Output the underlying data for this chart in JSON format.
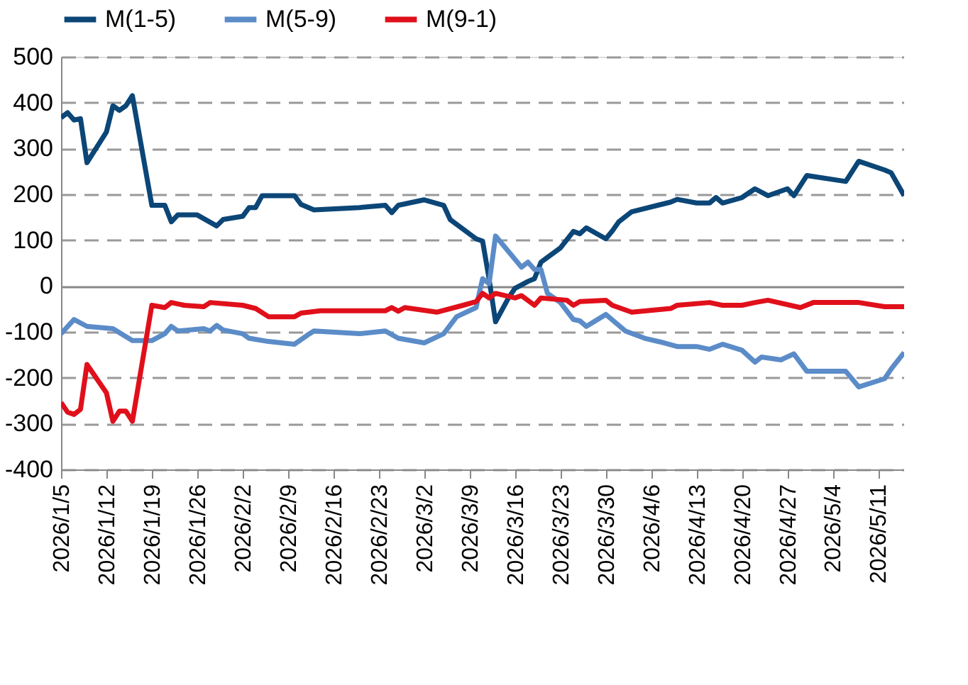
{
  "chart_data": {
    "type": "line",
    "legend": "top",
    "grid": "y",
    "marker": "none",
    "line_style": "solid",
    "xlim": [
      "2026-01-05",
      "2026-05-15"
    ],
    "xticks": [
      {
        "value": "2026-01-05",
        "label": "2026/1/5"
      },
      {
        "value": "2026-01-12",
        "label": "2026/1/12"
      },
      {
        "value": "2026-01-19",
        "label": "2026/1/19"
      },
      {
        "value": "2026-01-26",
        "label": "2026/1/26"
      },
      {
        "value": "2026-02-02",
        "label": "2026/2/2"
      },
      {
        "value": "2026-02-09",
        "label": "2026/2/9"
      },
      {
        "value": "2026-02-16",
        "label": "2026/2/16"
      },
      {
        "value": "2026-02-23",
        "label": "2026/2/23"
      },
      {
        "value": "2026-03-02",
        "label": "2026/3/2"
      },
      {
        "value": "2026-03-09",
        "label": "2026/3/9"
      },
      {
        "value": "2026-03-16",
        "label": "2026/3/16"
      },
      {
        "value": "2026-03-23",
        "label": "2026/3/23"
      },
      {
        "value": "2026-03-30",
        "label": "2026/3/30"
      },
      {
        "value": "2026-04-06",
        "label": "2026/4/6"
      },
      {
        "value": "2026-04-13",
        "label": "2026/4/13"
      },
      {
        "value": "2026-04-20",
        "label": "2026/4/20"
      },
      {
        "value": "2026-04-27",
        "label": "2026/4/27"
      },
      {
        "value": "2026-05-04",
        "label": "2026/5/4"
      },
      {
        "value": "2026-05-11",
        "label": "2026/5/11"
      }
    ],
    "ylim": [
      -400,
      500
    ],
    "yticks": [
      -400,
      -300,
      -200,
      -100,
      0,
      100,
      200,
      300,
      400,
      500
    ],
    "series": [
      {
        "name": "M(1-5)",
        "color": "#0b4677",
        "x": [
          "2026-01-05",
          "2026-01-06",
          "2026-01-07",
          "2026-01-08",
          "2026-01-09",
          "2026-01-12",
          "2026-01-13",
          "2026-01-14",
          "2026-01-15",
          "2026-01-16",
          "2026-01-19",
          "2026-01-21",
          "2026-01-22",
          "2026-01-23",
          "2026-01-26",
          "2026-01-29",
          "2026-01-30",
          "2026-02-02",
          "2026-02-03",
          "2026-02-04",
          "2026-02-05",
          "2026-02-10",
          "2026-02-11",
          "2026-02-13",
          "2026-02-20",
          "2026-02-24",
          "2026-02-25",
          "2026-02-26",
          "2026-03-02",
          "2026-03-05",
          "2026-03-06",
          "2026-03-10",
          "2026-03-11",
          "2026-03-12",
          "2026-03-13",
          "2026-03-15",
          "2026-03-16",
          "2026-03-18",
          "2026-03-19",
          "2026-03-20",
          "2026-03-23",
          "2026-03-25",
          "2026-03-26",
          "2026-03-27",
          "2026-03-30",
          "2026-03-31",
          "2026-04-01",
          "2026-04-03",
          "2026-04-07",
          "2026-04-09",
          "2026-04-10",
          "2026-04-13",
          "2026-04-15",
          "2026-04-16",
          "2026-04-17",
          "2026-04-20",
          "2026-04-22",
          "2026-04-24",
          "2026-04-27",
          "2026-04-28",
          "2026-04-30",
          "2026-05-06",
          "2026-05-08",
          "2026-05-12",
          "2026-05-13",
          "2026-05-14",
          "2026-05-15"
        ],
        "values": [
          367,
          378,
          362,
          365,
          269,
          336,
          393,
          383,
          393,
          415,
          176,
          176,
          140,
          155,
          155,
          131,
          145,
          152,
          171,
          171,
          197,
          197,
          178,
          166,
          171,
          176,
          160,
          176,
          188,
          176,
          145,
          103,
          98,
          16,
          -78,
          -26,
          -5,
          10,
          16,
          52,
          83,
          119,
          114,
          127,
          103,
          120,
          140,
          162,
          176,
          183,
          189,
          181,
          181,
          193,
          181,
          193,
          212,
          197,
          212,
          197,
          241,
          228,
          272,
          253,
          247,
          222,
          197
        ]
      },
      {
        "name": "M(5-9)",
        "color": "#5b8cc8",
        "x": [
          "2026-01-05",
          "2026-01-07",
          "2026-01-09",
          "2026-01-13",
          "2026-01-16",
          "2026-01-19",
          "2026-01-21",
          "2026-01-22",
          "2026-01-23",
          "2026-01-27",
          "2026-01-28",
          "2026-01-29",
          "2026-01-30",
          "2026-02-02",
          "2026-02-03",
          "2026-02-06",
          "2026-02-10",
          "2026-02-12",
          "2026-02-13",
          "2026-02-20",
          "2026-02-24",
          "2026-02-26",
          "2026-03-02",
          "2026-03-05",
          "2026-03-07",
          "2026-03-10",
          "2026-03-11",
          "2026-03-12",
          "2026-03-13",
          "2026-03-17",
          "2026-03-18",
          "2026-03-19",
          "2026-03-20",
          "2026-03-21",
          "2026-03-23",
          "2026-03-25",
          "2026-03-26",
          "2026-03-27",
          "2026-03-30",
          "2026-04-02",
          "2026-04-05",
          "2026-04-08",
          "2026-04-10",
          "2026-04-13",
          "2026-04-15",
          "2026-04-17",
          "2026-04-20",
          "2026-04-22",
          "2026-04-23",
          "2026-04-26",
          "2026-04-28",
          "2026-04-30",
          "2026-05-06",
          "2026-05-08",
          "2026-05-12",
          "2026-05-13",
          "2026-05-15"
        ],
        "values": [
          -104,
          -73,
          -88,
          -93,
          -119,
          -119,
          -104,
          -88,
          -98,
          -93,
          -98,
          -86,
          -96,
          -104,
          -114,
          -121,
          -127,
          -107,
          -98,
          -104,
          -98,
          -114,
          -124,
          -104,
          -67,
          -47,
          16,
          5,
          109,
          41,
          52,
          36,
          36,
          -16,
          -36,
          -73,
          -76,
          -88,
          -62,
          -98,
          -114,
          -124,
          -132,
          -132,
          -138,
          -127,
          -140,
          -166,
          -155,
          -161,
          -148,
          -186,
          -186,
          -220,
          -202,
          -181,
          -145
        ]
      },
      {
        "name": "M(9-1)",
        "color": "#e0101b",
        "x": [
          "2026-01-05",
          "2026-01-06",
          "2026-01-07",
          "2026-01-08",
          "2026-01-09",
          "2026-01-12",
          "2026-01-13",
          "2026-01-14",
          "2026-01-15",
          "2026-01-16",
          "2026-01-19",
          "2026-01-21",
          "2026-01-22",
          "2026-01-24",
          "2026-01-27",
          "2026-01-28",
          "2026-02-02",
          "2026-02-04",
          "2026-02-06",
          "2026-02-10",
          "2026-02-11",
          "2026-02-14",
          "2026-02-20",
          "2026-02-24",
          "2026-02-25",
          "2026-02-26",
          "2026-02-27",
          "2026-03-04",
          "2026-03-08",
          "2026-03-10",
          "2026-03-11",
          "2026-03-12",
          "2026-03-13",
          "2026-03-16",
          "2026-03-17",
          "2026-03-19",
          "2026-03-20",
          "2026-03-24",
          "2026-03-25",
          "2026-03-26",
          "2026-03-30",
          "2026-03-31",
          "2026-04-03",
          "2026-04-09",
          "2026-04-10",
          "2026-04-15",
          "2026-04-17",
          "2026-04-20",
          "2026-04-22",
          "2026-04-24",
          "2026-04-29",
          "2026-05-01",
          "2026-05-08",
          "2026-05-12",
          "2026-05-15"
        ],
        "values": [
          -254,
          -275,
          -280,
          -269,
          -171,
          -233,
          -295,
          -273,
          -273,
          -295,
          -42,
          -47,
          -36,
          -42,
          -45,
          -36,
          -42,
          -49,
          -67,
          -67,
          -59,
          -54,
          -54,
          -54,
          -47,
          -55,
          -47,
          -57,
          -42,
          -34,
          -16,
          -26,
          -16,
          -26,
          -21,
          -42,
          -26,
          -31,
          -42,
          -34,
          -31,
          -42,
          -57,
          -49,
          -42,
          -36,
          -42,
          -42,
          -36,
          -31,
          -47,
          -36,
          -36,
          -45,
          -45
        ]
      }
    ]
  }
}
